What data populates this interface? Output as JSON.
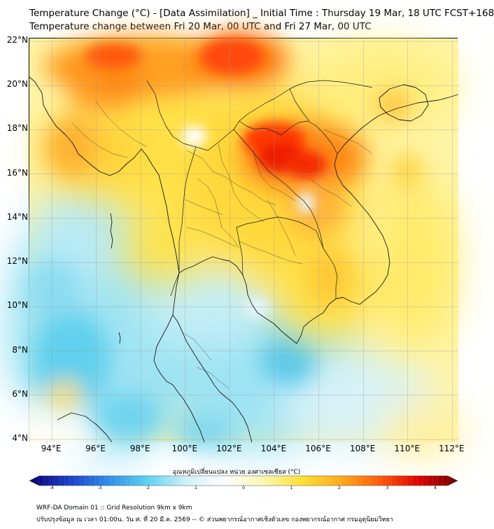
{
  "title_line1": "Temperature Change (°C) - [Data Assimilation] _ Initial Time : Thursday 19 Mar, 18 UTC FCST+168",
  "title_line2": "Temperature change between Fri 20 Mar, 00 UTC and Fri 27 Mar, 00 UTC",
  "lat_labels": [
    "22°N",
    "20°N",
    "18°N",
    "16°N",
    "14°N",
    "12°N",
    "10°N",
    "8°N",
    "6°N",
    "4°N"
  ],
  "lon_labels": [
    "94°E",
    "96°E",
    "98°E",
    "100°E",
    "102°E",
    "104°E",
    "106°E",
    "108°E",
    "110°E",
    "112°E"
  ],
  "colorbar": {
    "title": "อุณหภูมิเปลี่ยนแปลง หน่วย องศาเซลเซียส (°C)",
    "ticks": [
      "-4",
      "-3",
      "-2",
      "-1",
      "0",
      "1",
      "2",
      "3",
      "4"
    ],
    "min": -4,
    "max": 4,
    "colors": [
      "#08006e",
      "#1a3cc8",
      "#2f8be6",
      "#5ad0f0",
      "#cdf0f8",
      "#ffffff",
      "#fff6b0",
      "#ffe033",
      "#ffaa1a",
      "#ff5a0a",
      "#e00000",
      "#6e0000"
    ]
  },
  "footer_line1": "WRF-DA Domain 01 :: Grid Resolution 9km x 9km",
  "footer_line2": "ปรับปรุงข้อมูล ณ เวลา 01:00น. วัน ศ. ที่ 20 มี.ค. 2569 -- © ส่วนพยากรณ์อากาศเชิงตัวเลข กองพยากรณ์อากาศ กรมอุตุนิยมวิทยา"
}
